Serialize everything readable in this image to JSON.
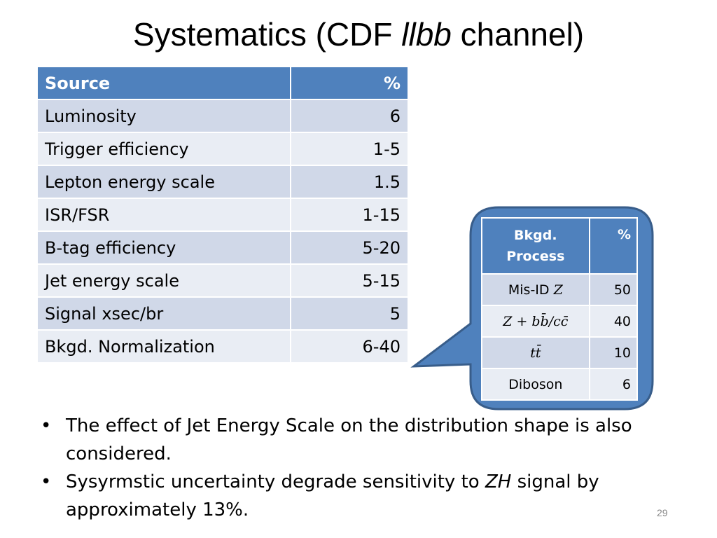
{
  "title": {
    "prefix": "Systematics (CDF ",
    "emphasis": "llbb",
    "suffix": " channel)"
  },
  "main_table": {
    "headers": {
      "source": "Source",
      "percent": "%"
    },
    "rows": [
      {
        "source": "Luminosity",
        "percent": "6"
      },
      {
        "source": "Trigger efficiency",
        "percent": "1-5"
      },
      {
        "source": "Lepton energy scale",
        "percent": "1.5"
      },
      {
        "source": "ISR/FSR",
        "percent": "1-15"
      },
      {
        "source": "B-tag efficiency",
        "percent": "5-20"
      },
      {
        "source": "Jet energy scale",
        "percent": "5-15"
      },
      {
        "source": "Signal xsec/br",
        "percent": "5"
      },
      {
        "source": "Bkgd. Normalization",
        "percent": "6-40"
      }
    ]
  },
  "bkgd_table": {
    "headers": {
      "process_line1": "Bkgd.",
      "process_line2": "Process",
      "percent": "%"
    },
    "rows": [
      {
        "process_text": "Mis-ID ",
        "process_math": "Z",
        "percent": "50"
      },
      {
        "process_math": "Z + bb̄/cc̄",
        "percent": "40"
      },
      {
        "process_math": "tt̄",
        "percent": "10"
      },
      {
        "process_text": "Diboson",
        "percent": "6"
      }
    ]
  },
  "bullets": [
    {
      "symbol": "•",
      "text": "The effect of Jet Energy Scale on the distribution shape is also considered."
    },
    {
      "symbol": "•",
      "pre": "Sysyrmstic uncertainty degrade sensitivity to ",
      "em": "ZH",
      "post": " signal by approximately 13%."
    }
  ],
  "page_number": "29",
  "colors": {
    "header_blue": "#4f81bd",
    "row_dark": "#d0d8e8",
    "row_light": "#e9edf4",
    "callout_fill": "#4f81bd",
    "callout_border": "#385d8a"
  }
}
